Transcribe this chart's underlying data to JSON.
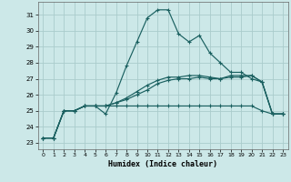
{
  "xlabel": "Humidex (Indice chaleur)",
  "bg_color": "#cce8e8",
  "grid_color": "#aacccc",
  "line_color": "#1a6060",
  "xlim": [
    -0.5,
    23.5
  ],
  "ylim": [
    22.6,
    31.8
  ],
  "xticks": [
    0,
    1,
    2,
    3,
    4,
    5,
    6,
    7,
    8,
    9,
    10,
    11,
    12,
    13,
    14,
    15,
    16,
    17,
    18,
    19,
    20,
    21,
    22,
    23
  ],
  "yticks": [
    23,
    24,
    25,
    26,
    27,
    28,
    29,
    30,
    31
  ],
  "series": [
    [
      23.3,
      23.3,
      25.0,
      25.0,
      25.3,
      25.3,
      24.8,
      26.1,
      27.8,
      29.3,
      30.8,
      31.3,
      31.3,
      29.8,
      29.3,
      29.7,
      28.6,
      28.0,
      27.4,
      27.4,
      27.0,
      26.8,
      24.8,
      24.8
    ],
    [
      23.3,
      23.3,
      25.0,
      25.0,
      25.3,
      25.3,
      25.3,
      25.5,
      25.8,
      26.2,
      26.6,
      26.9,
      27.1,
      27.1,
      27.2,
      27.2,
      27.1,
      27.0,
      27.2,
      27.2,
      27.2,
      26.8,
      24.8,
      24.8
    ],
    [
      23.3,
      23.3,
      25.0,
      25.0,
      25.3,
      25.3,
      25.3,
      25.5,
      25.7,
      26.0,
      26.3,
      26.7,
      26.9,
      27.0,
      27.0,
      27.1,
      27.0,
      27.0,
      27.1,
      27.1,
      27.2,
      26.8,
      24.8,
      24.8
    ],
    [
      23.3,
      23.3,
      25.0,
      25.0,
      25.3,
      25.3,
      25.3,
      25.3,
      25.3,
      25.3,
      25.3,
      25.3,
      25.3,
      25.3,
      25.3,
      25.3,
      25.3,
      25.3,
      25.3,
      25.3,
      25.3,
      25.0,
      24.8,
      24.8
    ]
  ]
}
